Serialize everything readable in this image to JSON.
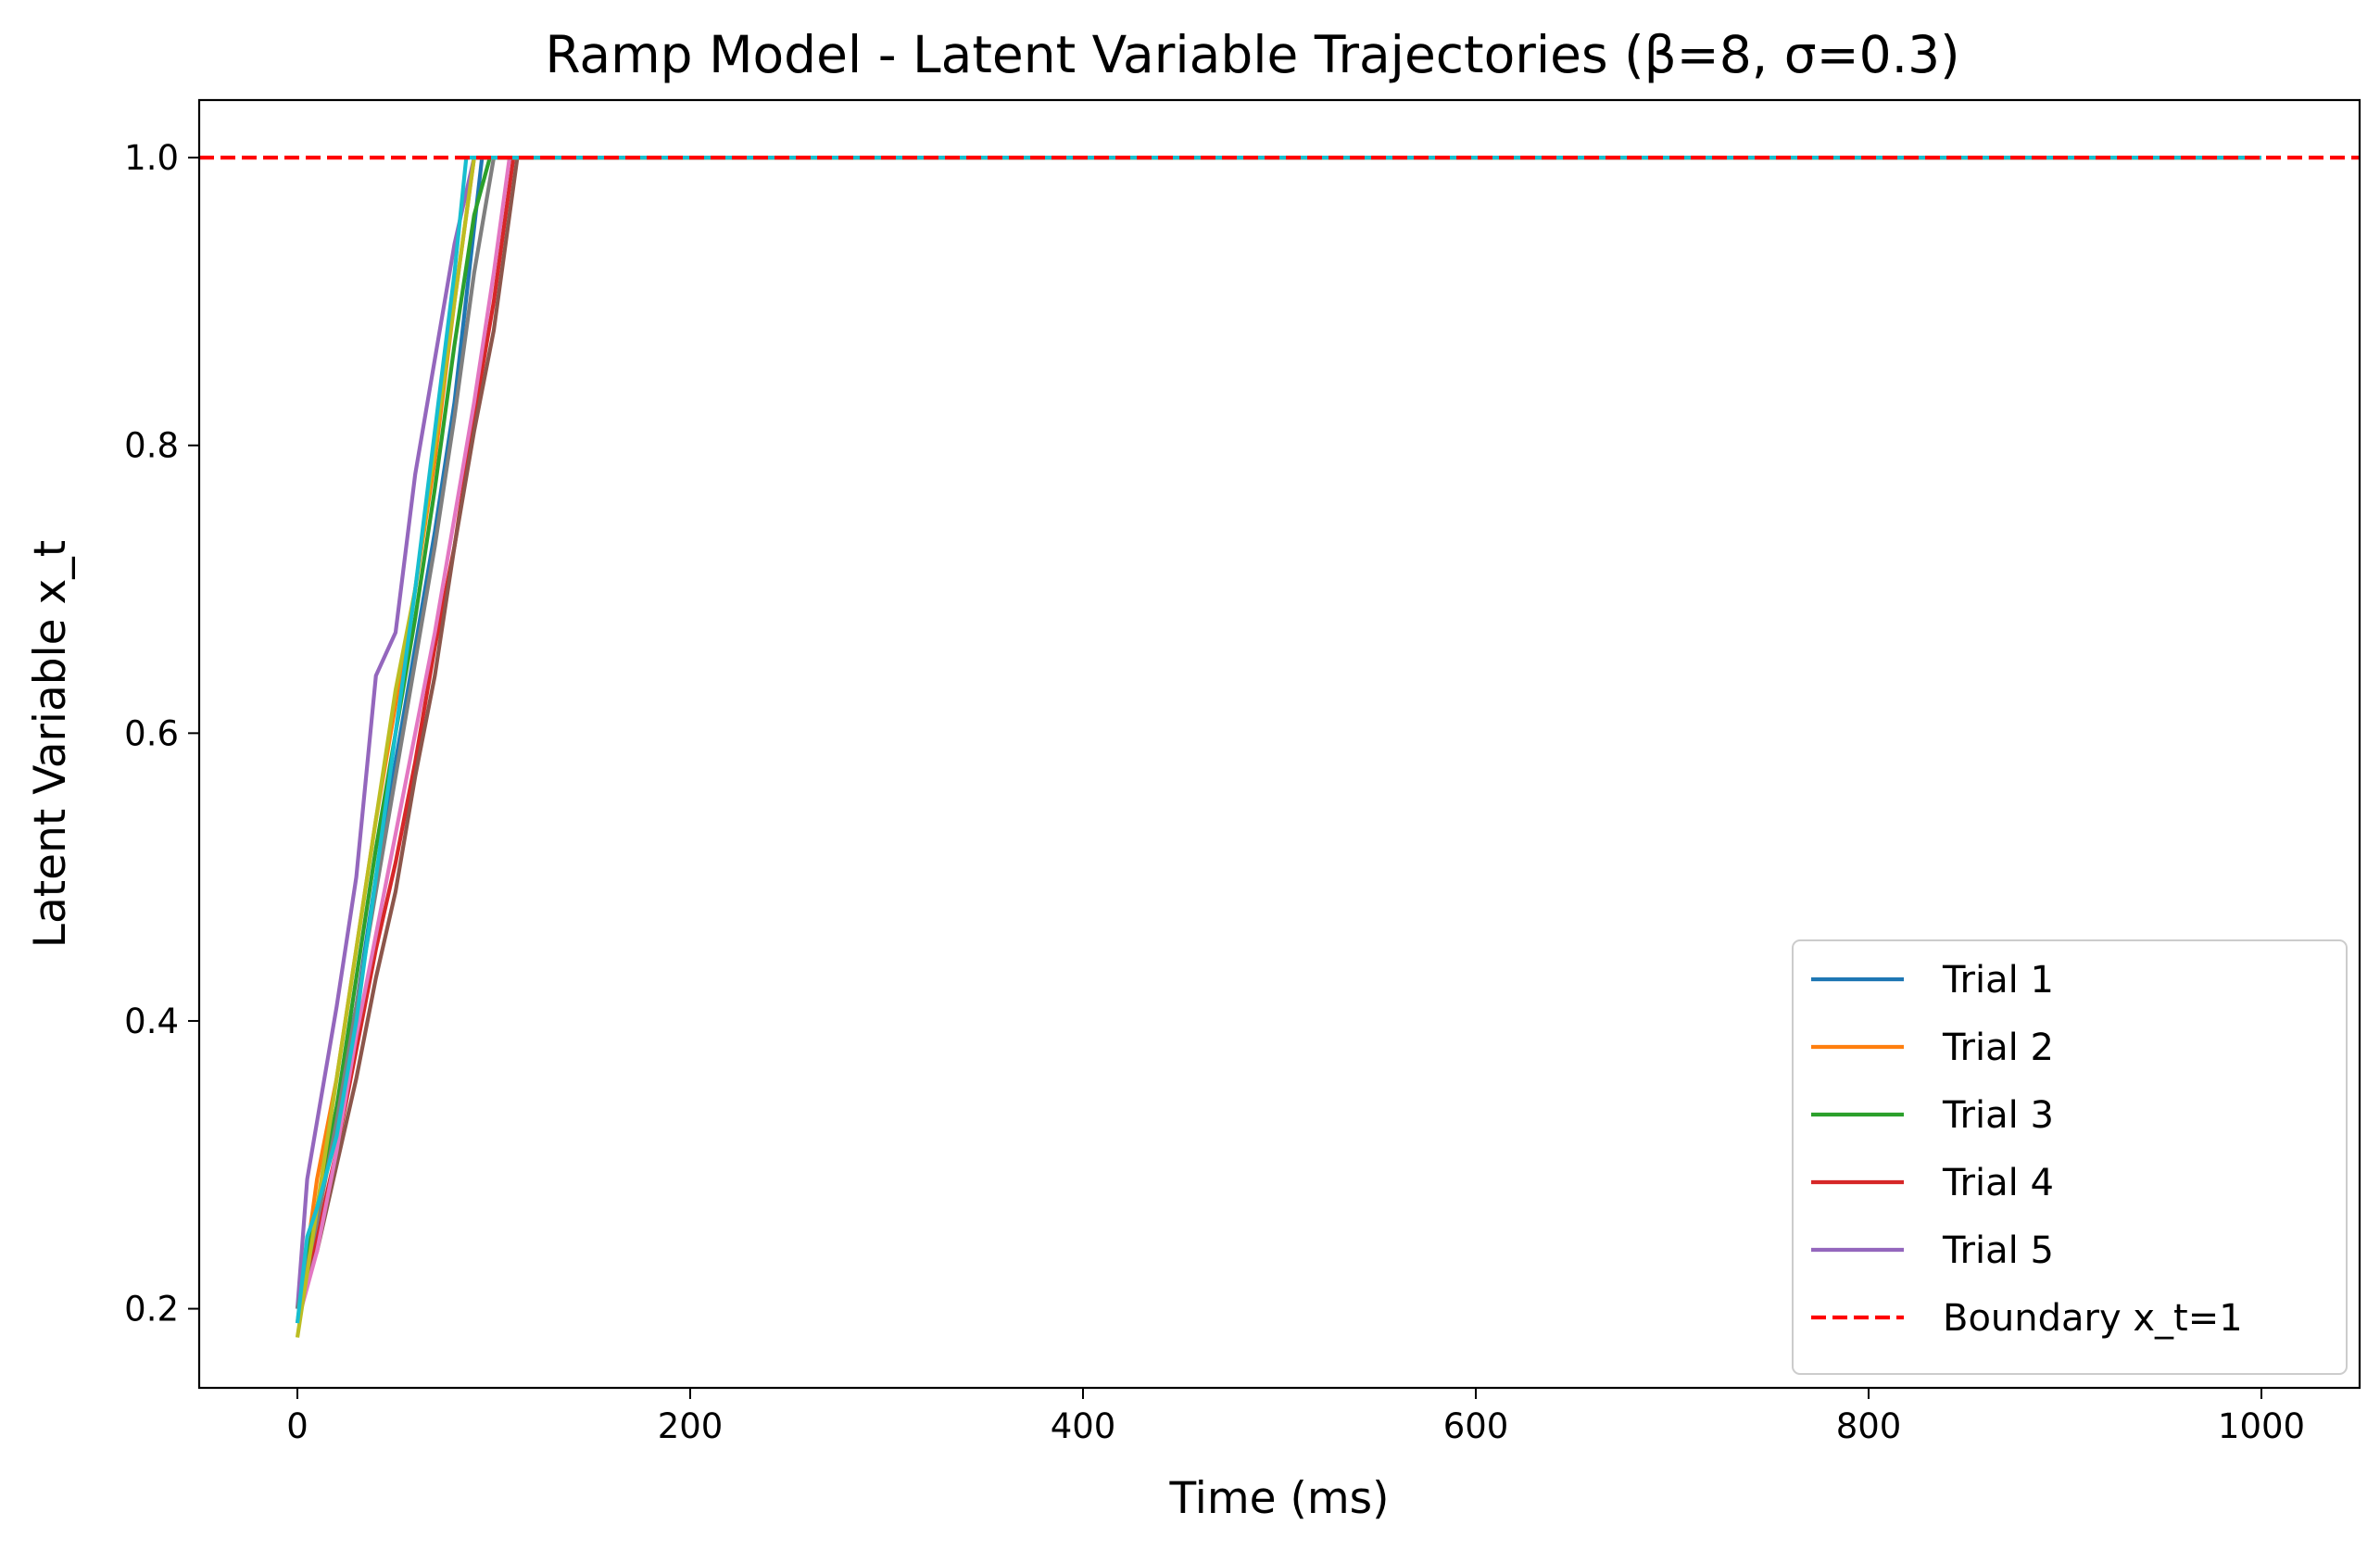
{
  "chart_data": {
    "type": "line",
    "title": "Ramp Model - Latent Variable Trajectories (β=8, σ=0.3)",
    "xlabel": "Time (ms)",
    "ylabel": "Latent Variable x_t",
    "xlim": [
      -50,
      1050
    ],
    "ylim": [
      0.145,
      1.04
    ],
    "xticks": [
      0,
      200,
      400,
      600,
      800,
      1000
    ],
    "xtick_labels": [
      "0",
      "200",
      "400",
      "600",
      "800",
      "1000"
    ],
    "yticks": [
      0.2,
      0.4,
      0.6,
      0.8,
      1.0
    ],
    "ytick_labels": [
      "0.2",
      "0.4",
      "0.6",
      "0.8",
      "1.0"
    ],
    "grid": false,
    "legend_position": "bottom-right",
    "series": [
      {
        "name": "Trial 1",
        "color": "#1f77b4",
        "x": [
          0,
          10,
          20,
          30,
          40,
          50,
          60,
          70,
          80,
          94,
          1000
        ],
        "y": [
          0.2,
          0.27,
          0.34,
          0.41,
          0.5,
          0.58,
          0.66,
          0.74,
          0.83,
          1.0,
          1.0
        ]
      },
      {
        "name": "Trial 2",
        "color": "#ff7f0e",
        "x": [
          0,
          10,
          20,
          30,
          40,
          50,
          60,
          70,
          80,
          90,
          1000
        ],
        "y": [
          0.19,
          0.29,
          0.36,
          0.45,
          0.54,
          0.62,
          0.7,
          0.79,
          0.9,
          1.0,
          1.0
        ]
      },
      {
        "name": "Trial 3",
        "color": "#2ca02c",
        "x": [
          0,
          10,
          20,
          30,
          40,
          50,
          60,
          70,
          80,
          90,
          98,
          1000
        ],
        "y": [
          0.2,
          0.27,
          0.34,
          0.43,
          0.52,
          0.6,
          0.68,
          0.77,
          0.87,
          0.96,
          1.0,
          1.0
        ]
      },
      {
        "name": "Trial 4",
        "color": "#d62728",
        "x": [
          0,
          10,
          20,
          30,
          40,
          50,
          60,
          70,
          80,
          90,
          100,
          110,
          1000
        ],
        "y": [
          0.2,
          0.25,
          0.31,
          0.38,
          0.45,
          0.51,
          0.58,
          0.66,
          0.73,
          0.82,
          0.9,
          1.0,
          1.0
        ]
      },
      {
        "name": "Trial 5",
        "color": "#9467bd",
        "x": [
          0,
          5,
          10,
          20,
          30,
          40,
          50,
          60,
          70,
          80,
          90,
          1000
        ],
        "y": [
          0.2,
          0.29,
          0.33,
          0.41,
          0.5,
          0.64,
          0.67,
          0.78,
          0.86,
          0.94,
          1.0,
          1.0
        ]
      },
      {
        "name": "",
        "color": "#8c564b",
        "x": [
          0,
          10,
          20,
          30,
          40,
          50,
          60,
          70,
          80,
          90,
          100,
          112,
          1000
        ],
        "y": [
          0.2,
          0.24,
          0.3,
          0.36,
          0.43,
          0.49,
          0.57,
          0.64,
          0.73,
          0.81,
          0.88,
          1.0,
          1.0
        ]
      },
      {
        "name": "",
        "color": "#e377c2",
        "x": [
          0,
          10,
          20,
          30,
          40,
          50,
          60,
          70,
          80,
          90,
          100,
          108,
          1000
        ],
        "y": [
          0.19,
          0.24,
          0.31,
          0.39,
          0.46,
          0.53,
          0.6,
          0.67,
          0.75,
          0.83,
          0.92,
          1.0,
          1.0
        ]
      },
      {
        "name": "",
        "color": "#7f7f7f",
        "x": [
          0,
          10,
          20,
          30,
          40,
          50,
          60,
          70,
          80,
          90,
          100,
          1000
        ],
        "y": [
          0.2,
          0.26,
          0.33,
          0.41,
          0.49,
          0.57,
          0.65,
          0.73,
          0.82,
          0.92,
          1.0,
          1.0
        ]
      },
      {
        "name": "",
        "color": "#bcbd22",
        "x": [
          0,
          10,
          20,
          30,
          40,
          50,
          60,
          70,
          80,
          90,
          1000
        ],
        "y": [
          0.18,
          0.27,
          0.36,
          0.45,
          0.54,
          0.63,
          0.7,
          0.8,
          0.9,
          1.0,
          1.0
        ]
      },
      {
        "name": "",
        "color": "#17becf",
        "x": [
          0,
          5,
          10,
          20,
          30,
          40,
          50,
          60,
          70,
          80,
          86,
          1000
        ],
        "y": [
          0.19,
          0.25,
          0.27,
          0.32,
          0.4,
          0.5,
          0.6,
          0.7,
          0.81,
          0.92,
          1.0,
          1.0
        ]
      }
    ],
    "boundary": {
      "name": "Boundary x_t=1",
      "y": 1.0,
      "color": "#ff0000",
      "style": "dashed"
    }
  }
}
